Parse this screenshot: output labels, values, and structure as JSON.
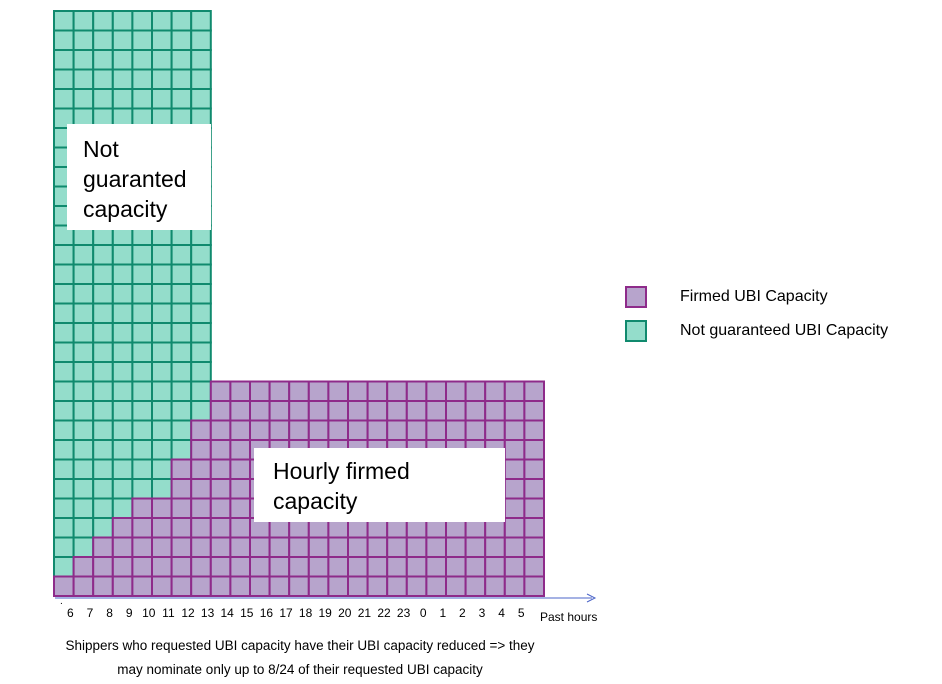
{
  "colors": {
    "firmed_fill": "#B7A4CC",
    "firmed_border": "#8E2B8A",
    "not_guaranteed_fill": "#94DDCB",
    "not_guaranteed_border": "#108A6E",
    "axis": "#4B64C8"
  },
  "diagram": {
    "columns": 25,
    "rows_green_column": 30,
    "rows_firmed_plateau": 11,
    "firmed_rows_per_column": [
      1,
      2,
      3,
      4,
      5,
      5,
      7,
      9,
      11,
      11,
      11,
      11,
      11,
      11,
      11,
      11,
      11,
      11,
      11,
      11,
      11,
      11,
      11,
      11,
      11
    ],
    "green_columns": 8
  },
  "labels": {
    "not_guaranteed_box": [
      "Not",
      "guaranted",
      "capacity"
    ],
    "firmed_box": [
      "Hourly firmed",
      "capacity"
    ]
  },
  "x_axis": {
    "first_tick": ".",
    "ticks": [
      "6",
      "7",
      "8",
      "9",
      "10",
      "11",
      "12",
      "13",
      "14",
      "15",
      "16",
      "17",
      "18",
      "19",
      "20",
      "21",
      "22",
      "23",
      "0",
      "1",
      "2",
      "3",
      "4",
      "5"
    ],
    "label": "Past hours"
  },
  "legend": [
    {
      "label": "Firmed UBI Capacity",
      "fill": "#B7A4CC",
      "border": "#8E2B8A"
    },
    {
      "label": "Not guaranteed  UBI Capacity",
      "fill": "#94DDCB",
      "border": "#108A6E"
    }
  ],
  "caption": [
    "Shippers who requested UBI capacity have their UBI capacity reduced => they",
    "may nominate only up to 8/24 of their requested UBI capacity"
  ]
}
